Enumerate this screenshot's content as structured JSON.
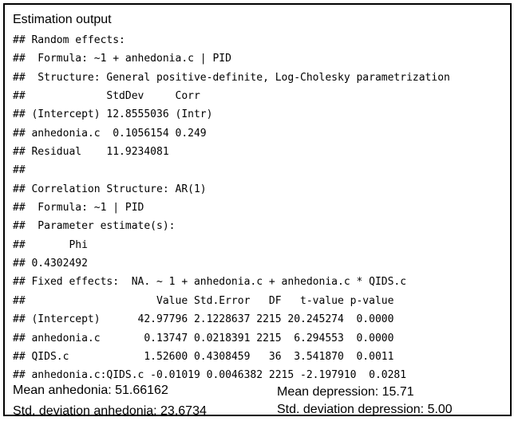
{
  "title": "Estimation output",
  "output_lines": [
    "## Random effects:",
    "##  Formula: ~1 + anhedonia.c | PID",
    "##  Structure: General positive-definite, Log-Cholesky parametrization",
    "##             StdDev     Corr",
    "## (Intercept) 12.8555036 (Intr)",
    "## anhedonia.c  0.1056154 0.249",
    "## Residual    11.9234081",
    "##",
    "## Correlation Structure: AR(1)",
    "##  Formula: ~1 | PID",
    "##  Parameter estimate(s):",
    "##       Phi",
    "## 0.4302492",
    "## Fixed effects:  NA. ~ 1 + anhedonia.c + anhedonia.c * QIDS.c",
    "##                     Value Std.Error   DF   t-value p-value",
    "## (Intercept)      42.97796 2.1228637 2215 20.245274  0.0000",
    "## anhedonia.c       0.13747 0.0218391 2215  6.294553  0.0000",
    "## QIDS.c            1.52600 0.4308459   36  3.541870  0.0011",
    "## anhedonia.c:QIDS.c -0.01019 0.0046382 2215 -2.197910  0.0281"
  ],
  "summary": {
    "mean_anhedonia": "Mean anhedonia: 51.66162",
    "sd_anhedonia": "Std. deviation anhedonia: 23.6734",
    "mean_depression": "Mean depression: 15.71",
    "sd_depression": "Std. deviation depression: 5.00"
  }
}
